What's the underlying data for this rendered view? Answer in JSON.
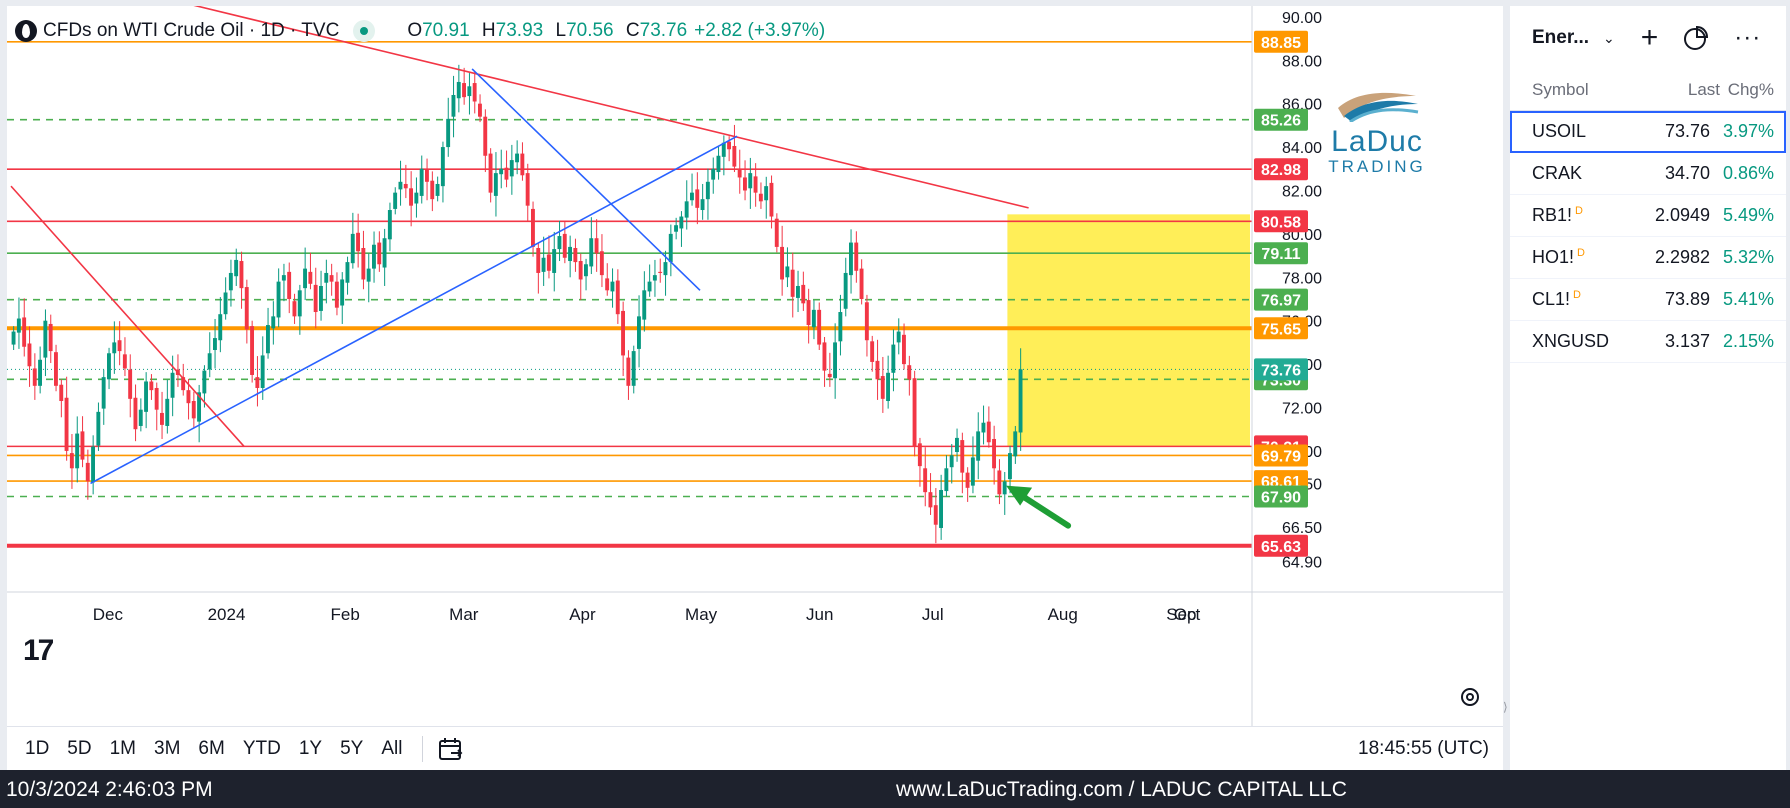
{
  "legend": {
    "title": "CFDs on WTI Crude Oil · 1D · TVC",
    "ohlc": [
      {
        "k": "O",
        "v": "70.91"
      },
      {
        "k": "H",
        "v": "73.93"
      },
      {
        "k": "L",
        "v": "70.56"
      },
      {
        "k": "C",
        "v": "73.76"
      }
    ],
    "change": "+2.82 (+3.97%)"
  },
  "brand": {
    "line1": "LaDuc",
    "line2": "TRADING"
  },
  "colors": {
    "up": "#089981",
    "down": "#f23645",
    "red": "#f23645",
    "orange": "#ff9800",
    "green": "#4caf50",
    "blue": "#2962ff",
    "yellow": "#ffeb3b"
  },
  "chart_data": {
    "type": "candlestick",
    "symbol": "CFDs on WTI Crude Oil",
    "interval": "1D",
    "x_ticks": [
      "Dec",
      "2024",
      "Feb",
      "Mar",
      "Apr",
      "May",
      "Jun",
      "Jul",
      "Aug",
      "Sep",
      "Oct"
    ],
    "y_ticks": [
      "90.00",
      "88.00",
      "86.00",
      "84.00",
      "82.00",
      "80.00",
      "78.00",
      "76.00",
      "74.00",
      "72.00",
      "70.00",
      "68.50",
      "66.50",
      "64.90"
    ],
    "ylim": [
      63.5,
      90.5
    ],
    "price_levels": [
      {
        "label": "88.85",
        "value": 88.85,
        "color": "#ff9800",
        "style": "solid"
      },
      {
        "label": "85.26",
        "value": 85.26,
        "color": "#4caf50",
        "style": "dashed"
      },
      {
        "label": "82.98",
        "value": 82.98,
        "color": "#f23645",
        "style": "solid"
      },
      {
        "label": "80.58",
        "value": 80.58,
        "color": "#f23645",
        "style": "solid"
      },
      {
        "label": "79.11",
        "value": 79.11,
        "color": "#4caf50",
        "style": "solid"
      },
      {
        "label": "76.97",
        "value": 76.97,
        "color": "#4caf50",
        "style": "dashed"
      },
      {
        "label": "75.65",
        "value": 75.65,
        "color": "#ff9800",
        "style": "thick"
      },
      {
        "label": "73.30",
        "value": 73.3,
        "color": "#4caf50",
        "style": "dashed"
      },
      {
        "label": "70.21",
        "value": 70.21,
        "color": "#f23645",
        "style": "solid"
      },
      {
        "label": "69.79",
        "value": 69.79,
        "color": "#ff9800",
        "style": "solid"
      },
      {
        "label": "68.61",
        "value": 68.61,
        "color": "#ff9800",
        "style": "solid"
      },
      {
        "label": "67.90",
        "value": 67.9,
        "color": "#4caf50",
        "style": "dashed"
      },
      {
        "label": "65.63",
        "value": 65.63,
        "color": "#f23645",
        "style": "thick"
      }
    ],
    "current_price": {
      "label": "73.76",
      "value": 73.76
    },
    "closes": [
      75.5,
      76.1,
      74.8,
      73.9,
      73.0,
      74.2,
      76.0,
      74.6,
      73.0,
      72.3,
      70.0,
      69.2,
      70.8,
      69.6,
      68.6,
      70.2,
      71.8,
      73.4,
      74.5,
      75.0,
      74.6,
      73.8,
      72.4,
      71.0,
      71.9,
      73.2,
      72.8,
      71.9,
      71.2,
      72.4,
      73.6,
      73.5,
      72.8,
      72.2,
      71.5,
      72.7,
      73.7,
      74.5,
      75.2,
      76.3,
      77.3,
      78.2,
      78.8,
      77.5,
      75.6,
      73.5,
      72.9,
      74.4,
      75.8,
      76.2,
      77.8,
      78.1,
      77.0,
      76.2,
      77.4,
      78.4,
      77.7,
      76.4,
      77.6,
      78.2,
      77.8,
      76.6,
      77.9,
      78.7,
      80.0,
      79.2,
      77.9,
      78.4,
      79.5,
      78.6,
      79.8,
      81.1,
      81.9,
      82.4,
      82.1,
      81.3,
      81.9,
      83.0,
      82.4,
      81.6,
      82.3,
      84.0,
      85.3,
      86.4,
      87.0,
      86.3,
      86.8,
      86.1,
      85.4,
      83.6,
      81.9,
      82.8,
      83.0,
      82.5,
      83.4,
      83.7,
      82.7,
      81.3,
      79.4,
      78.2,
      78.9,
      78.3,
      79.3,
      79.9,
      78.9,
      79.4,
      78.7,
      77.9,
      78.6,
      79.8,
      79.1,
      78.1,
      77.4,
      77.8,
      76.3,
      74.4,
      73.0,
      74.6,
      76.2,
      77.4,
      77.8,
      78.1,
      78.2,
      78.7,
      80.0,
      80.4,
      80.8,
      81.5,
      81.9,
      81.2,
      81.6,
      82.4,
      83.0,
      83.6,
      84.2,
      83.9,
      83.1,
      82.6,
      82.0,
      82.8,
      81.9,
      81.5,
      82.2,
      80.8,
      79.4,
      77.9,
      78.5,
      77.1,
      77.6,
      76.8,
      75.8,
      76.5,
      74.9,
      73.7,
      73.4,
      75.0,
      76.4,
      78.2,
      79.6,
      78.3,
      77.0,
      75.1,
      74.1,
      73.3,
      72.4,
      73.6,
      74.9,
      75.5,
      74.0,
      73.3,
      70.2,
      69.3,
      68.1,
      67.4,
      66.6,
      68.2,
      69.2,
      69.8,
      70.6,
      69.0,
      68.3,
      69.7,
      70.9,
      71.3,
      70.4,
      69.2,
      68.0,
      68.6,
      69.9,
      70.9,
      73.76
    ],
    "trendlines": [
      {
        "color": "#f23645",
        "from": {
          "bar": 0,
          "price": 82.2
        },
        "to": {
          "bar": 44,
          "price": 70.2
        }
      },
      {
        "color": "#f23645",
        "from": {
          "bar": 30,
          "price": 90.8
        },
        "to": {
          "bar": 192,
          "price": 81.2
        }
      },
      {
        "color": "#2962ff",
        "from": {
          "bar": 15,
          "price": 68.5
        },
        "to": {
          "bar": 137,
          "price": 84.5
        }
      },
      {
        "color": "#2962ff",
        "from": {
          "bar": 87,
          "price": 87.6
        },
        "to": {
          "bar": 130,
          "price": 77.4
        }
      }
    ],
    "highlight_zone": {
      "color": "#ffeb3b",
      "from_bar": 188,
      "to_bar": 198,
      "price_top": 80.9,
      "price_bottom": 70.21
    },
    "arrow": {
      "color": "#1e9e35",
      "tip_bar": 187,
      "tip_price": 68.4
    }
  },
  "toolbar": {
    "ranges": [
      "1D",
      "5D",
      "1M",
      "3M",
      "6M",
      "YTD",
      "1Y",
      "5Y",
      "All"
    ],
    "clock": "18:45:55 (UTC)"
  },
  "sidebar": {
    "list_name": "Ener...",
    "columns": {
      "symbol": "Symbol",
      "last": "Last",
      "chg": "Chg%"
    },
    "rows": [
      {
        "symbol": "USOIL",
        "flag": "",
        "last": "73.76",
        "chg": "3.97%"
      },
      {
        "symbol": "CRAK",
        "flag": "",
        "last": "34.70",
        "chg": "0.86%"
      },
      {
        "symbol": "RB1!",
        "flag": "D",
        "last": "2.0949",
        "chg": "5.49%"
      },
      {
        "symbol": "HO1!",
        "flag": "D",
        "last": "2.2982",
        "chg": "5.32%"
      },
      {
        "symbol": "CL1!",
        "flag": "D",
        "last": "73.89",
        "chg": "5.41%"
      },
      {
        "symbol": "XNGUSD",
        "flag": "",
        "last": "3.137",
        "chg": "2.15%"
      }
    ]
  },
  "footer": {
    "timestamp": "10/3/2024 2:46:03 PM",
    "site": "www.LaDucTrading.com / LADUC CAPITAL LLC"
  }
}
